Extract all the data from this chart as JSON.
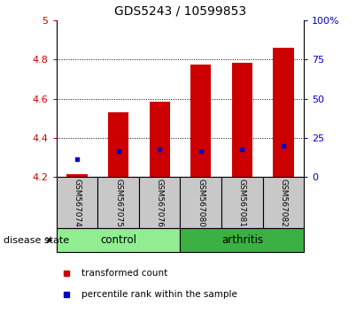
{
  "title": "GDS5243 / 10599853",
  "samples": [
    "GSM567074",
    "GSM567075",
    "GSM567076",
    "GSM567080",
    "GSM567081",
    "GSM567082"
  ],
  "red_bar_tops": [
    4.215,
    4.53,
    4.583,
    4.773,
    4.783,
    4.862
  ],
  "blue_marker_y": [
    4.29,
    4.33,
    4.34,
    4.33,
    4.34,
    4.36
  ],
  "bar_bottom": 4.2,
  "ylim_left": [
    4.2,
    5.0
  ],
  "ylim_right": [
    0,
    100
  ],
  "yticks_left": [
    4.2,
    4.4,
    4.6,
    4.8,
    5.0
  ],
  "yticks_right": [
    0,
    25,
    50,
    75,
    100
  ],
  "ytick_labels_left": [
    "4.2",
    "4.4",
    "4.6",
    "4.8",
    "5"
  ],
  "ytick_labels_right": [
    "0",
    "25",
    "50",
    "75",
    "100%"
  ],
  "control_color": "#90EE90",
  "arthritis_color": "#3CB043",
  "disease_label": "disease state",
  "bar_color": "#CC0000",
  "marker_color": "#0000CC",
  "tick_label_bg": "#C8C8C8",
  "bar_width": 0.5,
  "legend_red_label": "transformed count",
  "legend_blue_label": "percentile rank within the sample"
}
